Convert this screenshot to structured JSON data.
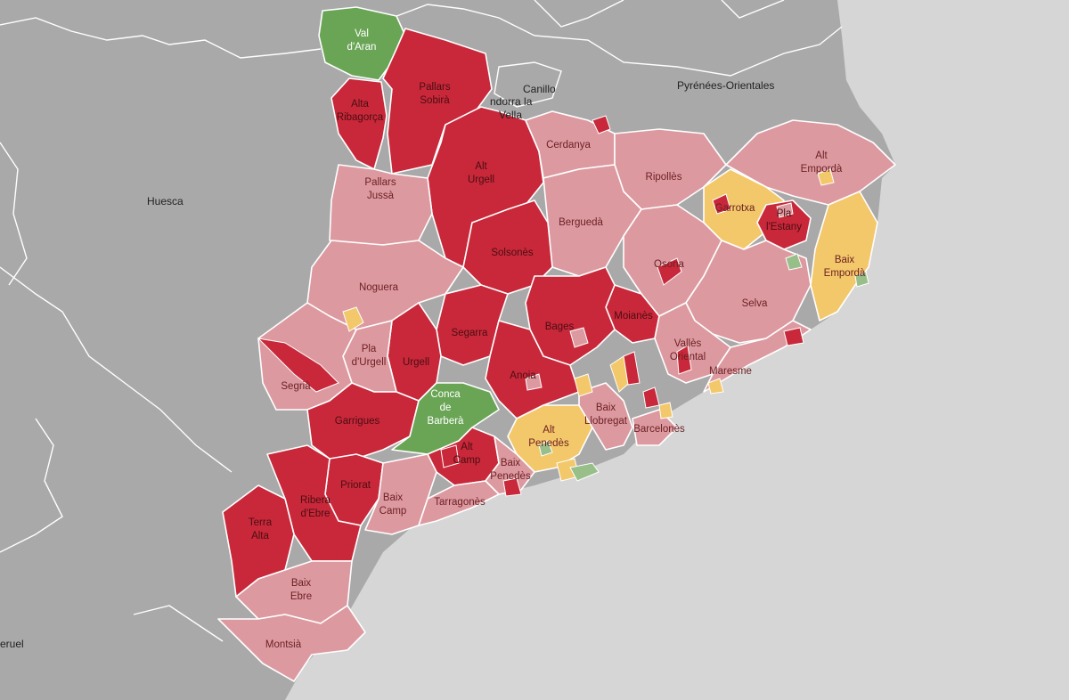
{
  "colors": {
    "sea": "#d6d6d6",
    "land": "#a9a9a9",
    "level_high": "#c8283a",
    "level_medium": "#dc9aa0",
    "level_low": "#f3c86a",
    "level_none": "#6aa556",
    "micro_green": "#98bf8a"
  },
  "legend_levels": [
    "high",
    "medium",
    "low",
    "none"
  ],
  "base_labels": {
    "huesca": "Huesca",
    "teruel": "eruel",
    "canillo": "Canillo",
    "andorra_1": "ndorra la",
    "andorra_2": "Vella",
    "pyrenees": "Pyrénées-Orientales"
  },
  "comarques": [
    {
      "id": "val-daran",
      "lines": [
        "Val",
        "d'Aran"
      ],
      "level": "none"
    },
    {
      "id": "pallars-sobira",
      "lines": [
        "Pallars",
        "Sobirà"
      ],
      "level": "high"
    },
    {
      "id": "alta-ribagorca",
      "lines": [
        "Alta",
        "Ribagorça"
      ],
      "level": "high"
    },
    {
      "id": "alt-urgell",
      "lines": [
        "Alt",
        "Urgell"
      ],
      "level": "high"
    },
    {
      "id": "cerdanya",
      "lines": [
        "Cerdanya"
      ],
      "level": "medium"
    },
    {
      "id": "ripolles",
      "lines": [
        "Ripollès"
      ],
      "level": "medium"
    },
    {
      "id": "alt-emporda",
      "lines": [
        "Alt",
        "Empordà"
      ],
      "level": "medium"
    },
    {
      "id": "pallars-jussa",
      "lines": [
        "Pallars",
        "Jussà"
      ],
      "level": "medium"
    },
    {
      "id": "bergueda",
      "lines": [
        "Berguedà"
      ],
      "level": "medium"
    },
    {
      "id": "garrotxa",
      "lines": [
        "Garrotxa"
      ],
      "level": "low"
    },
    {
      "id": "pla-estany",
      "lines": [
        "Pla",
        "l'Estany"
      ],
      "level": "high"
    },
    {
      "id": "solsones",
      "lines": [
        "Solsonès"
      ],
      "level": "high"
    },
    {
      "id": "osona",
      "lines": [
        "Osona"
      ],
      "level": "medium"
    },
    {
      "id": "baix-emporda",
      "lines": [
        "Baix",
        "Empordà"
      ],
      "level": "low"
    },
    {
      "id": "noguera",
      "lines": [
        "Noguera"
      ],
      "level": "medium"
    },
    {
      "id": "selva",
      "lines": [
        "Selva"
      ],
      "level": "medium"
    },
    {
      "id": "moianes",
      "lines": [
        "Moianès"
      ],
      "level": "high"
    },
    {
      "id": "bages",
      "lines": [
        "Bages"
      ],
      "level": "high"
    },
    {
      "id": "segarra",
      "lines": [
        "Segarra"
      ],
      "level": "high"
    },
    {
      "id": "urgell",
      "lines": [
        "Urgell"
      ],
      "level": "high"
    },
    {
      "id": "pla-urgell",
      "lines": [
        "Pla",
        "d'Urgell"
      ],
      "level": "medium"
    },
    {
      "id": "segria",
      "lines": [
        "Segrià"
      ],
      "level": "medium"
    },
    {
      "id": "vallès-oriental",
      "lines": [
        "Vallès",
        "Oriental"
      ],
      "level": "medium"
    },
    {
      "id": "anoia",
      "lines": [
        "Anoia"
      ],
      "level": "high"
    },
    {
      "id": "maresme",
      "lines": [
        "Maresme"
      ],
      "level": "medium"
    },
    {
      "id": "garrigues",
      "lines": [
        "Garrigues"
      ],
      "level": "high"
    },
    {
      "id": "conca-barbera",
      "lines": [
        "Conca",
        "de",
        "Barberà"
      ],
      "level": "none"
    },
    {
      "id": "alt-penedes",
      "lines": [
        "Alt",
        "Penedès"
      ],
      "level": "low"
    },
    {
      "id": "baix-llobregat",
      "lines": [
        "Baix",
        "Llobregat"
      ],
      "level": "medium"
    },
    {
      "id": "barcelones",
      "lines": [
        "Barcelonès"
      ],
      "level": "medium"
    },
    {
      "id": "alt-camp",
      "lines": [
        "Alt",
        "Camp"
      ],
      "level": "high"
    },
    {
      "id": "baix-penedes",
      "lines": [
        "Baix",
        "Penedès"
      ],
      "level": "medium"
    },
    {
      "id": "priorat",
      "lines": [
        "Priorat"
      ],
      "level": "high"
    },
    {
      "id": "ribera-debre",
      "lines": [
        "Ribera",
        "d'Ebre"
      ],
      "level": "high"
    },
    {
      "id": "baix-camp",
      "lines": [
        "Baix",
        "Camp"
      ],
      "level": "medium"
    },
    {
      "id": "tarragones",
      "lines": [
        "Tarragonès"
      ],
      "level": "medium"
    },
    {
      "id": "terra-alta",
      "lines": [
        "Terra",
        "Alta"
      ],
      "level": "high"
    },
    {
      "id": "baix-ebre",
      "lines": [
        "Baix",
        "Ebre"
      ],
      "level": "medium"
    },
    {
      "id": "montsia",
      "lines": [
        "Montsià"
      ],
      "level": "medium"
    }
  ]
}
